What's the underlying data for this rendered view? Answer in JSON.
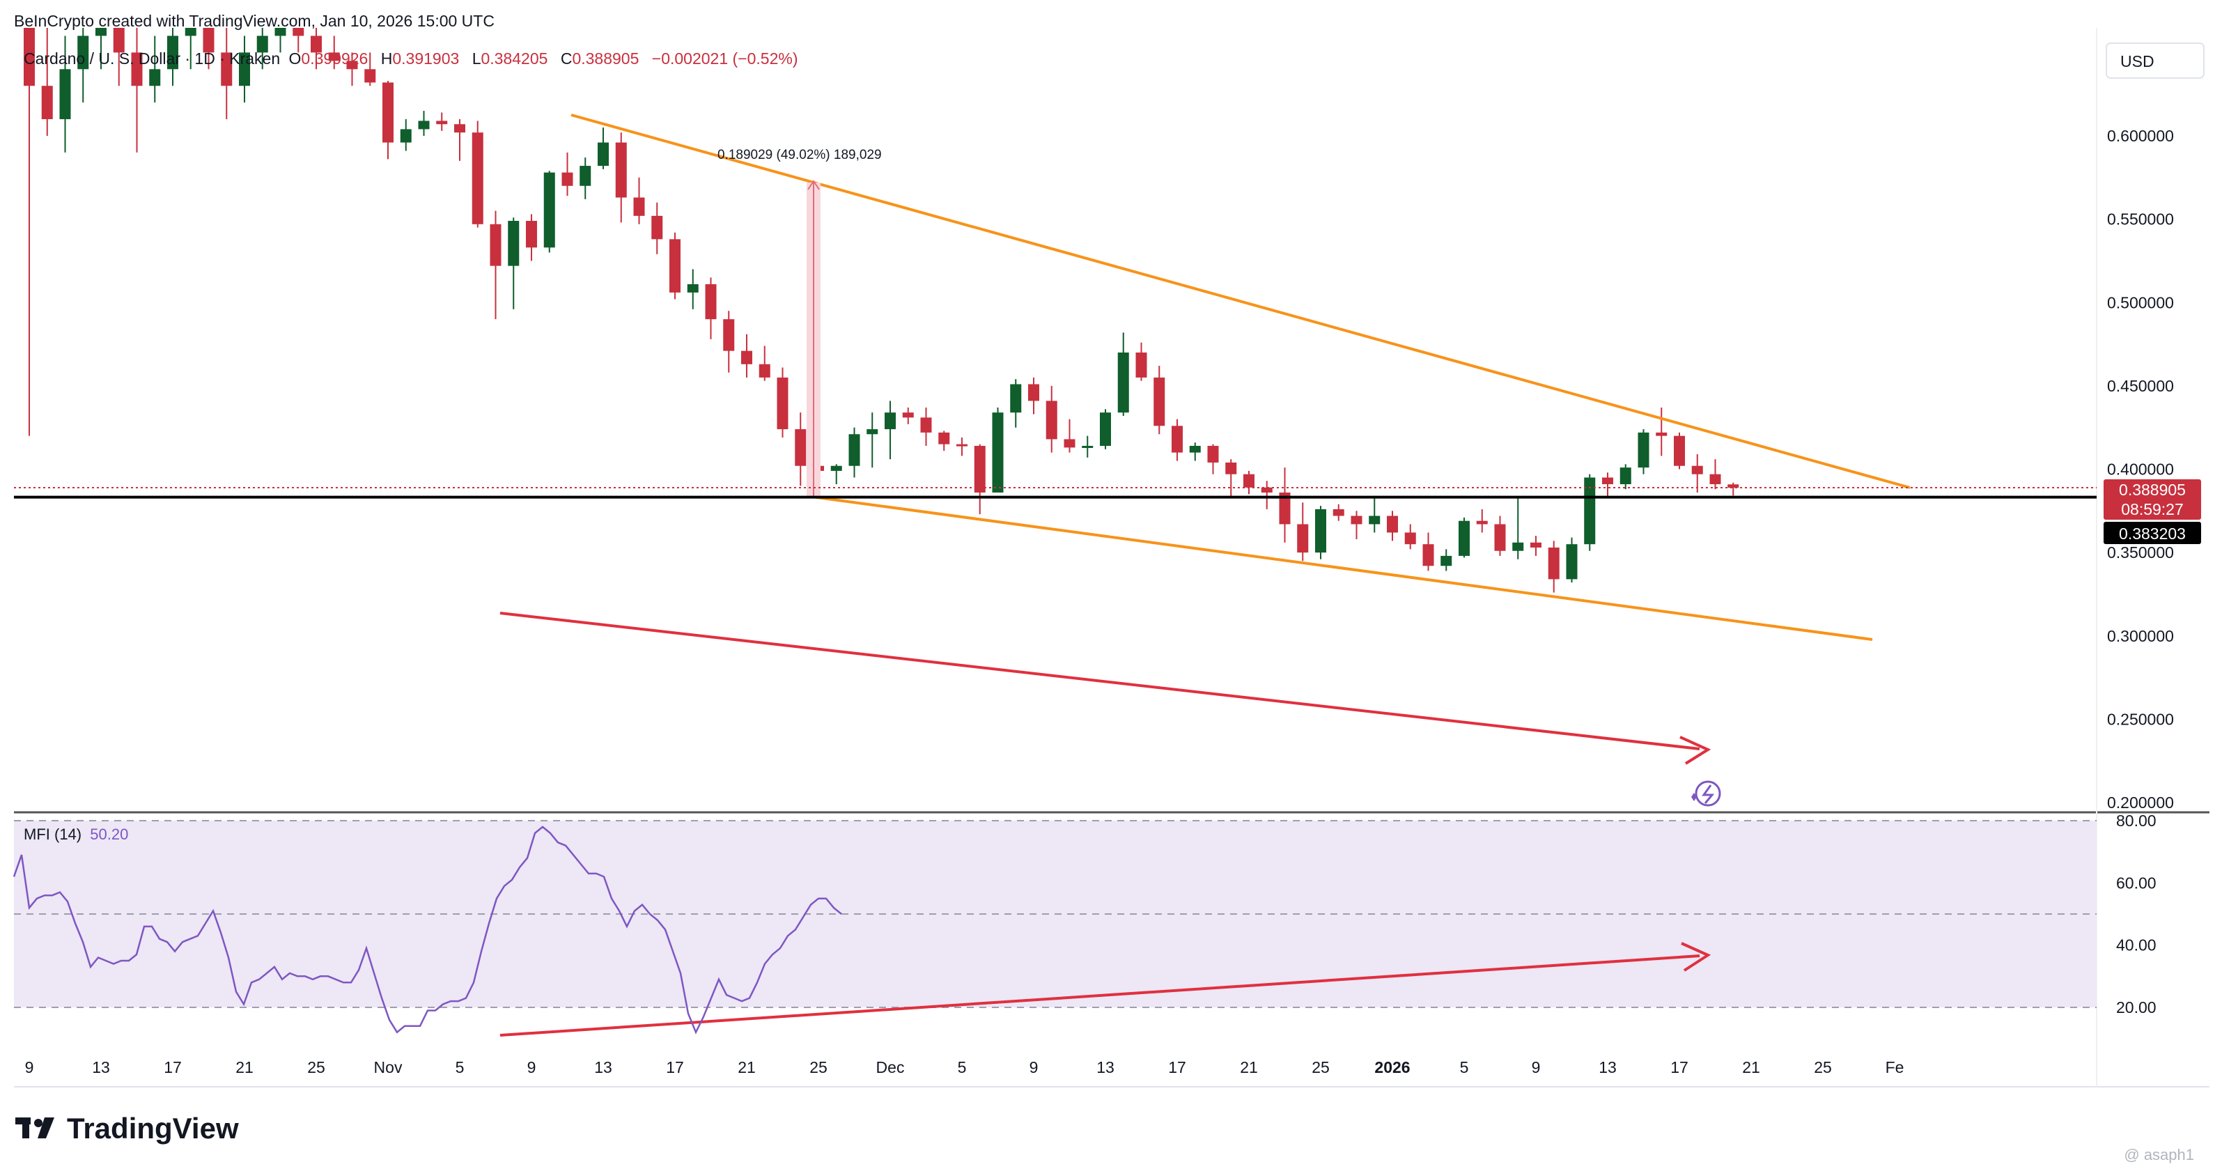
{
  "header": {
    "created_by": "BeInCrypto created with TradingView.com, Jan 10, 2026 15:00 UTC",
    "symbol": "Cardano / U. S. Dollar · 1D · Kraken",
    "open_label": "O",
    "open_value": "0.390926",
    "high_label": "H",
    "high_value": "0.391903",
    "low_label": "L",
    "low_value": "0.384205",
    "close_label": "C",
    "close_value": "0.388905",
    "change": "−0.002021 (−0.52%)"
  },
  "currency_button": "USD",
  "price_labels": {
    "current": "0.388905",
    "countdown": "08:59:27",
    "horizontal_line": "0.383203"
  },
  "measure_label": "0.189029 (49.02%) 189,029",
  "mfi_label": "MFI (14)",
  "mfi_value": "50.20",
  "footer_logo": "TradingView",
  "watermark": "@ asaph1",
  "colors": {
    "up": "#0f5e2c",
    "down": "#c8303e",
    "wedge": "#f7931a",
    "arrow": "#e0303e",
    "mfi_line": "#7e57c2",
    "mfi_band": "#ede7f6"
  },
  "chart_data": [
    {
      "type": "candlestick",
      "title": "Cardano / U. S. Dollar · 1D · Kraken",
      "ylim": [
        0.2,
        0.64
      ],
      "y_ticks": [
        "0.600000",
        "0.550000",
        "0.500000",
        "0.450000",
        "0.400000",
        "0.350000",
        "0.300000",
        "0.250000",
        "0.200000"
      ],
      "y_tick_values": [
        0.6,
        0.55,
        0.5,
        0.45,
        0.4,
        0.35,
        0.3,
        0.25,
        0.2
      ],
      "x_ticks": [
        "9",
        "13",
        "17",
        "21",
        "25",
        "Nov",
        "5",
        "9",
        "13",
        "17",
        "21",
        "25",
        "Dec",
        "5",
        "9",
        "13",
        "17",
        "21",
        "25",
        "2026",
        "5",
        "9",
        "13",
        "17",
        "21",
        "25",
        "Fe"
      ],
      "horizontal_line": 0.383203,
      "dates_start": "2025-10-09",
      "dates_end": "2026-01-10",
      "ohlc": [
        [
          0.79,
          0.8,
          0.42,
          0.63
        ],
        [
          0.63,
          0.67,
          0.6,
          0.61
        ],
        [
          0.61,
          0.66,
          0.59,
          0.64
        ],
        [
          0.64,
          0.68,
          0.62,
          0.66
        ],
        [
          0.66,
          0.69,
          0.64,
          0.67
        ],
        [
          0.67,
          0.68,
          0.63,
          0.65
        ],
        [
          0.65,
          0.67,
          0.59,
          0.63
        ],
        [
          0.63,
          0.66,
          0.62,
          0.64
        ],
        [
          0.64,
          0.68,
          0.63,
          0.66
        ],
        [
          0.66,
          0.69,
          0.64,
          0.67
        ],
        [
          0.67,
          0.68,
          0.64,
          0.65
        ],
        [
          0.65,
          0.67,
          0.61,
          0.63
        ],
        [
          0.63,
          0.66,
          0.62,
          0.65
        ],
        [
          0.65,
          0.67,
          0.64,
          0.66
        ],
        [
          0.66,
          0.69,
          0.65,
          0.67
        ],
        [
          0.67,
          0.68,
          0.65,
          0.66
        ],
        [
          0.66,
          0.68,
          0.64,
          0.65
        ],
        [
          0.65,
          0.66,
          0.64,
          0.645
        ],
        [
          0.645,
          0.65,
          0.63,
          0.64
        ],
        [
          0.64,
          0.65,
          0.63,
          0.632
        ],
        [
          0.632,
          0.633,
          0.586,
          0.596
        ],
        [
          0.596,
          0.61,
          0.591,
          0.604
        ],
        [
          0.604,
          0.615,
          0.6,
          0.609
        ],
        [
          0.609,
          0.614,
          0.603,
          0.607
        ],
        [
          0.607,
          0.61,
          0.585,
          0.602
        ],
        [
          0.602,
          0.609,
          0.545,
          0.547
        ],
        [
          0.547,
          0.555,
          0.49,
          0.522
        ],
        [
          0.522,
          0.551,
          0.496,
          0.549
        ],
        [
          0.549,
          0.553,
          0.525,
          0.533
        ],
        [
          0.533,
          0.579,
          0.53,
          0.578
        ],
        [
          0.578,
          0.59,
          0.564,
          0.57
        ],
        [
          0.57,
          0.587,
          0.562,
          0.582
        ],
        [
          0.582,
          0.605,
          0.58,
          0.596
        ],
        [
          0.596,
          0.602,
          0.548,
          0.563
        ],
        [
          0.563,
          0.575,
          0.547,
          0.552
        ],
        [
          0.552,
          0.56,
          0.529,
          0.538
        ],
        [
          0.538,
          0.542,
          0.502,
          0.506
        ],
        [
          0.506,
          0.52,
          0.496,
          0.511
        ],
        [
          0.511,
          0.515,
          0.478,
          0.49
        ],
        [
          0.49,
          0.495,
          0.458,
          0.471
        ],
        [
          0.471,
          0.481,
          0.455,
          0.463
        ],
        [
          0.463,
          0.474,
          0.453,
          0.455
        ],
        [
          0.455,
          0.461,
          0.419,
          0.424
        ],
        [
          0.424,
          0.434,
          0.39,
          0.402
        ],
        [
          0.402,
          0.414,
          0.387,
          0.399
        ],
        [
          0.399,
          0.403,
          0.391,
          0.402
        ],
        [
          0.402,
          0.425,
          0.395,
          0.421
        ],
        [
          0.421,
          0.434,
          0.401,
          0.424
        ],
        [
          0.424,
          0.441,
          0.406,
          0.434
        ],
        [
          0.434,
          0.437,
          0.427,
          0.431
        ],
        [
          0.431,
          0.437,
          0.414,
          0.422
        ],
        [
          0.422,
          0.423,
          0.411,
          0.415
        ],
        [
          0.415,
          0.419,
          0.408,
          0.414
        ],
        [
          0.414,
          0.415,
          0.373,
          0.386
        ],
        [
          0.386,
          0.437,
          0.386,
          0.434
        ],
        [
          0.434,
          0.454,
          0.425,
          0.451
        ],
        [
          0.451,
          0.455,
          0.433,
          0.441
        ],
        [
          0.441,
          0.45,
          0.41,
          0.418
        ],
        [
          0.418,
          0.43,
          0.41,
          0.413
        ],
        [
          0.413,
          0.42,
          0.407,
          0.414
        ],
        [
          0.414,
          0.436,
          0.412,
          0.434
        ],
        [
          0.434,
          0.482,
          0.432,
          0.47
        ],
        [
          0.47,
          0.476,
          0.453,
          0.455
        ],
        [
          0.455,
          0.462,
          0.421,
          0.426
        ],
        [
          0.426,
          0.43,
          0.405,
          0.41
        ],
        [
          0.41,
          0.416,
          0.405,
          0.414
        ],
        [
          0.414,
          0.415,
          0.397,
          0.404
        ],
        [
          0.404,
          0.406,
          0.383,
          0.397
        ],
        [
          0.397,
          0.399,
          0.385,
          0.389
        ],
        [
          0.389,
          0.393,
          0.376,
          0.386
        ],
        [
          0.386,
          0.401,
          0.356,
          0.367
        ],
        [
          0.367,
          0.38,
          0.345,
          0.35
        ],
        [
          0.35,
          0.378,
          0.346,
          0.376
        ],
        [
          0.376,
          0.379,
          0.369,
          0.372
        ],
        [
          0.372,
          0.375,
          0.358,
          0.367
        ],
        [
          0.367,
          0.384,
          0.362,
          0.372
        ],
        [
          0.372,
          0.375,
          0.357,
          0.362
        ],
        [
          0.362,
          0.367,
          0.352,
          0.355
        ],
        [
          0.355,
          0.362,
          0.339,
          0.342
        ],
        [
          0.342,
          0.352,
          0.339,
          0.348
        ],
        [
          0.348,
          0.371,
          0.347,
          0.369
        ],
        [
          0.369,
          0.376,
          0.362,
          0.367
        ],
        [
          0.367,
          0.372,
          0.348,
          0.351
        ],
        [
          0.351,
          0.383,
          0.346,
          0.356
        ],
        [
          0.356,
          0.36,
          0.348,
          0.353
        ],
        [
          0.353,
          0.357,
          0.326,
          0.334
        ],
        [
          0.334,
          0.359,
          0.332,
          0.355
        ],
        [
          0.355,
          0.397,
          0.351,
          0.395
        ],
        [
          0.395,
          0.398,
          0.384,
          0.391
        ],
        [
          0.391,
          0.403,
          0.388,
          0.401
        ],
        [
          0.401,
          0.424,
          0.397,
          0.422
        ],
        [
          0.422,
          0.437,
          0.408,
          0.42
        ],
        [
          0.42,
          0.422,
          0.4,
          0.402
        ],
        [
          0.402,
          0.409,
          0.386,
          0.397
        ],
        [
          0.397,
          0.406,
          0.388,
          0.391
        ],
        [
          0.3909,
          0.3919,
          0.3842,
          0.3889
        ]
      ]
    },
    {
      "type": "line",
      "title": "MFI (14)",
      "ylim": [
        0,
        85
      ],
      "y_ticks": [
        "80.00",
        "60.00",
        "40.00",
        "20.00"
      ],
      "y_tick_values": [
        80,
        60,
        40,
        20
      ],
      "band": [
        20,
        50,
        80
      ],
      "values": [
        62,
        69,
        52,
        55,
        56,
        56,
        57,
        54,
        47,
        41,
        33,
        36,
        35,
        34,
        35,
        35,
        37,
        46,
        46,
        42,
        41,
        38,
        41,
        42,
        43,
        47,
        51,
        44,
        36,
        25,
        21,
        28,
        29,
        31,
        33,
        29,
        31,
        30,
        30,
        29,
        30,
        30,
        29,
        28,
        28,
        32,
        39,
        31,
        23,
        16,
        12,
        14,
        14,
        14,
        19,
        19,
        21,
        22,
        22,
        23,
        28,
        38,
        47,
        55,
        59,
        61,
        65,
        68,
        76,
        78,
        76,
        73,
        72,
        69,
        66,
        63,
        63,
        62,
        55,
        51,
        46,
        51,
        53,
        50,
        48,
        45,
        38,
        31,
        18,
        12,
        17,
        23,
        29,
        24,
        23,
        22,
        23,
        28,
        34,
        37,
        39,
        43,
        45,
        49,
        53,
        55,
        55,
        52,
        50
      ]
    }
  ]
}
